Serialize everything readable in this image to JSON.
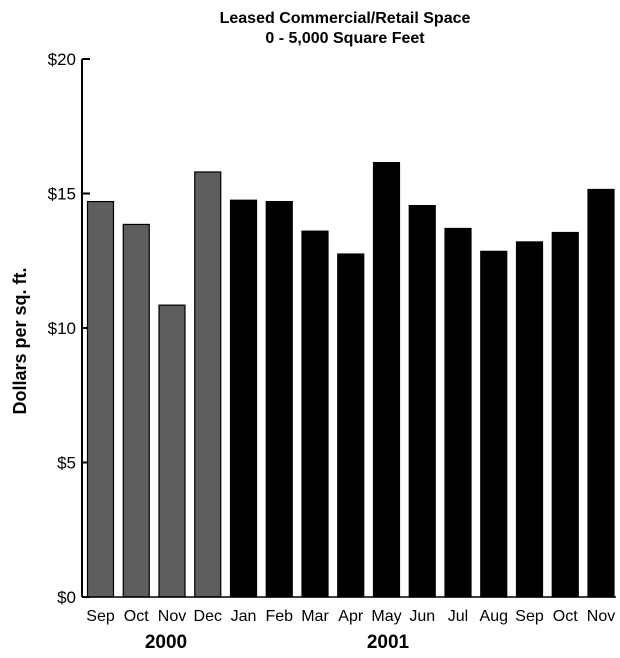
{
  "chart_data": {
    "type": "bar",
    "title": "Leased Commercial/Retail Space",
    "subtitle": "0 - 5,000 Square Feet",
    "ylabel": "Dollars per sq. ft.",
    "xlabel": "",
    "ylim": [
      0,
      20
    ],
    "yticks": [
      0,
      5,
      10,
      15,
      20
    ],
    "ytick_labels": [
      "$0",
      "$5",
      "$10",
      "$15",
      "$20"
    ],
    "grid": false,
    "categories": [
      "Sep",
      "Oct",
      "Nov",
      "Dec",
      "Jan",
      "Feb",
      "Mar",
      "Apr",
      "May",
      "Jun",
      "Jul",
      "Aug",
      "Sep",
      "Oct",
      "Nov"
    ],
    "values": [
      14.7,
      13.85,
      10.85,
      15.8,
      14.75,
      14.7,
      13.6,
      12.75,
      16.15,
      14.55,
      13.7,
      12.85,
      13.2,
      13.55,
      15.15
    ],
    "year_groups": [
      {
        "label": "2000",
        "start": 0,
        "end": 3,
        "color": "#5e5e5e"
      },
      {
        "label": "2001",
        "start": 4,
        "end": 14,
        "color": "#000000"
      }
    ]
  }
}
